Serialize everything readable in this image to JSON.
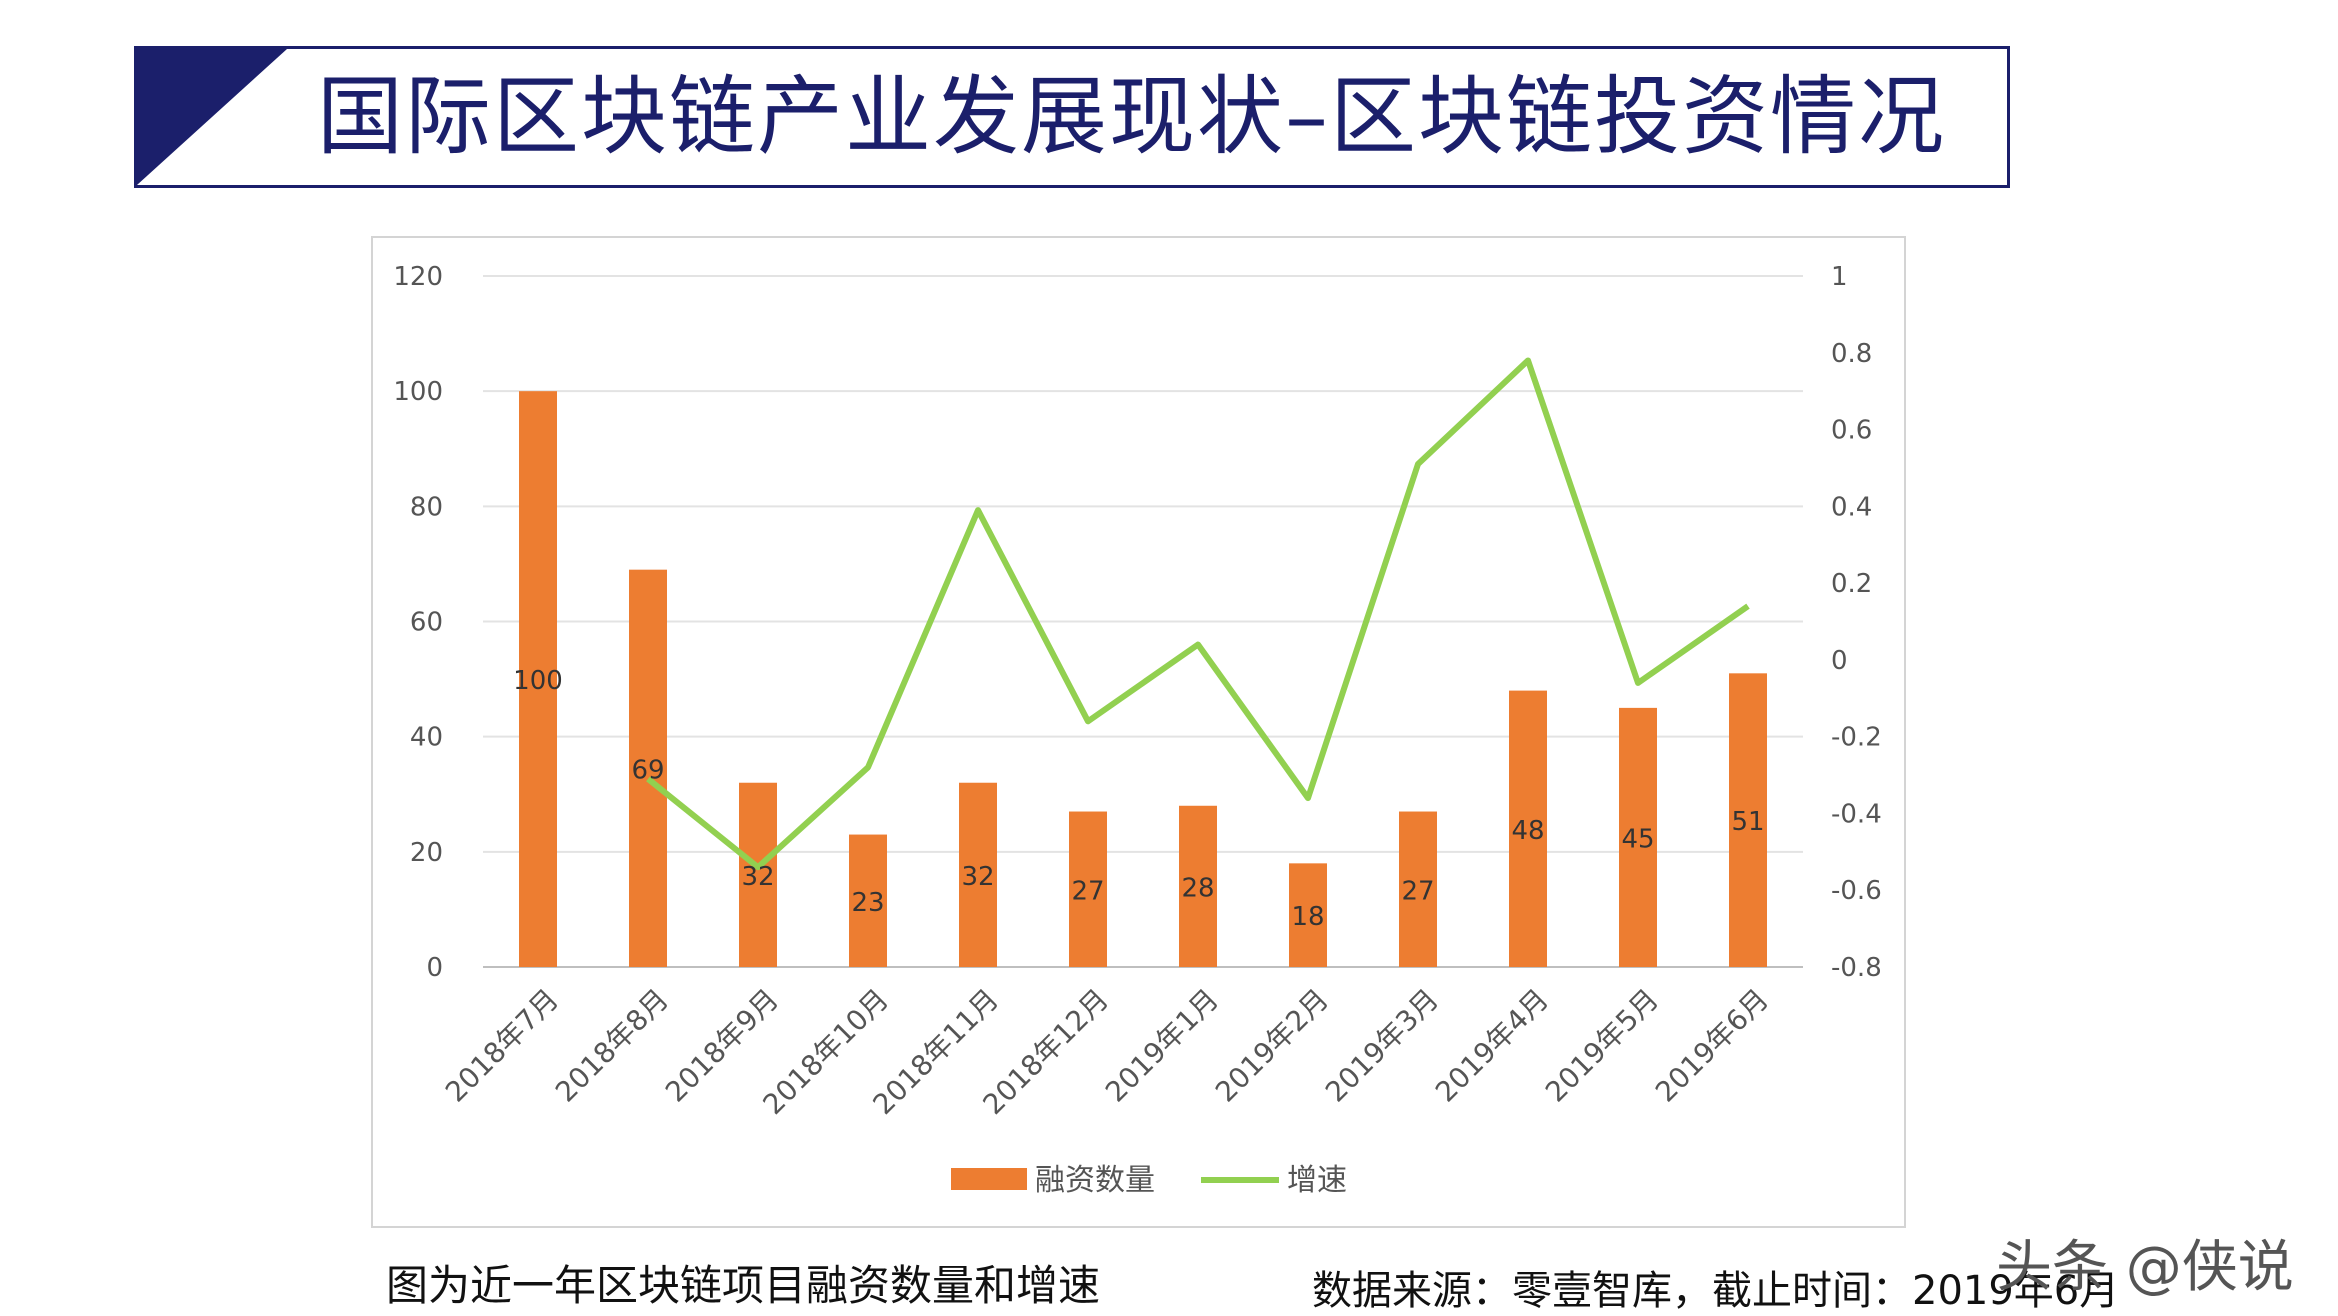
{
  "page": {
    "title": "国际区块链产业发展现状–区块链投资情况",
    "caption_left": "图为近一年区块链项目融资数量和增速",
    "caption_right": "数据来源：零壹智库，截止时间：2019年6月",
    "credit": "头条 @侠说",
    "colors": {
      "title": "#1b1f6b",
      "bar": "#ed7d31",
      "line": "#92d050"
    }
  },
  "chart_data": {
    "type": "bar",
    "title": "",
    "categories": [
      "2018年7月",
      "2018年8月",
      "2018年9月",
      "2018年10月",
      "2018年11月",
      "2018年12月",
      "2019年1月",
      "2019年2月",
      "2019年3月",
      "2019年4月",
      "2019年5月",
      "2019年6月"
    ],
    "series": [
      {
        "name": "融资数量",
        "type": "bar",
        "axis": "left",
        "color": "#ed7d31",
        "values": [
          100,
          69,
          32,
          23,
          32,
          27,
          28,
          18,
          27,
          48,
          45,
          51
        ]
      },
      {
        "name": "增速",
        "type": "line",
        "axis": "right",
        "color": "#92d050",
        "values": [
          null,
          -0.31,
          -0.54,
          -0.28,
          0.39,
          -0.16,
          0.04,
          -0.36,
          0.51,
          0.78,
          -0.06,
          0.14
        ]
      }
    ],
    "left_axis": {
      "min": 0,
      "max": 120,
      "ticks": [
        0,
        20,
        40,
        60,
        80,
        100,
        120
      ]
    },
    "right_axis": {
      "min": -0.8,
      "max": 1,
      "ticks": [
        "-0.8",
        "-0.6",
        "-0.4",
        "-0.2",
        "0",
        "0.2",
        "0.4",
        "0.6",
        "0.8",
        "1"
      ]
    },
    "grid": true,
    "legend_position": "bottom"
  }
}
